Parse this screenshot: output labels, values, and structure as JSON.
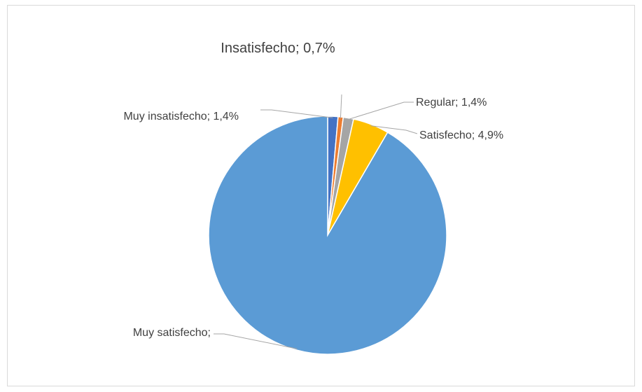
{
  "chart_data": {
    "type": "pie",
    "title": "",
    "legend": "none",
    "slices": [
      {
        "label": "Muy insatisfecho",
        "value": 1.4,
        "display": "Muy insatisfecho; 1,4%",
        "color": "#4472c4"
      },
      {
        "label": "Insatisfecho",
        "value": 0.7,
        "display": "Insatisfecho; 0,7%",
        "color": "#ed7d31"
      },
      {
        "label": "Regular",
        "value": 1.4,
        "display": "Regular; 1,4%",
        "color": "#a5a5a5"
      },
      {
        "label": "Satisfecho",
        "value": 4.9,
        "display": "Satisfecho; 4,9%",
        "color": "#ffc000"
      },
      {
        "label": "Muy satisfecho",
        "value": 91.6,
        "display": "Muy satisfecho;",
        "color": "#5b9bd5"
      }
    ]
  },
  "colors": {
    "leader_line": "#a6a6a6",
    "label_text": "#404040",
    "slice_border": "#ffffff"
  }
}
